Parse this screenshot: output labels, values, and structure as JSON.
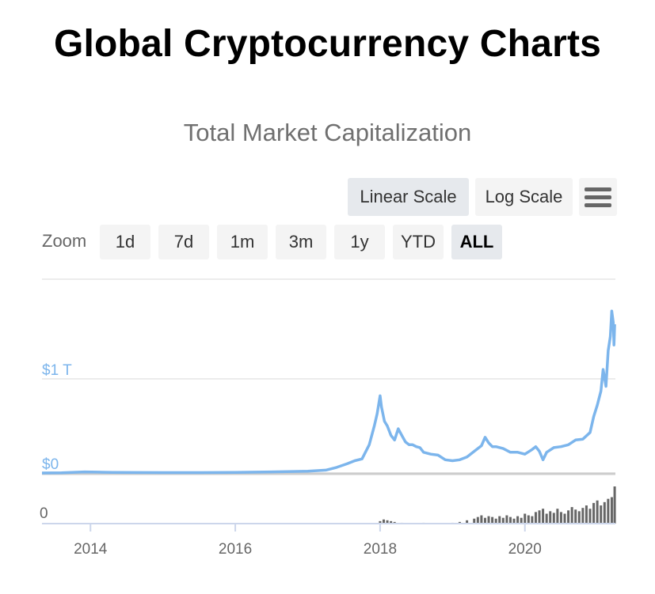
{
  "page": {
    "title": "Global Cryptocurrency Charts"
  },
  "controls": {
    "scale_buttons": [
      {
        "label": "Linear Scale",
        "active": true
      },
      {
        "label": "Log Scale",
        "active": false
      }
    ],
    "menu_icon": "hamburger-menu-icon",
    "zoom_label": "Zoom",
    "zoom_buttons": [
      {
        "label": "1d",
        "active": false
      },
      {
        "label": "7d",
        "active": false
      },
      {
        "label": "1m",
        "active": false
      },
      {
        "label": "3m",
        "active": false
      },
      {
        "label": "1y",
        "active": false
      },
      {
        "label": "YTD",
        "active": false
      },
      {
        "label": "ALL",
        "active": true
      }
    ]
  },
  "colors": {
    "line": "#7cb5ec",
    "volume": "#666666",
    "grid": "#e6e6e6",
    "axis": "#ccd6eb"
  },
  "chart_data": {
    "type": "line",
    "title": "Total Market Capitalization",
    "y_tick_labels": [
      "$0",
      "$1 T"
    ],
    "y_ticks": [
      0,
      1
    ],
    "ylim": [
      0,
      2
    ],
    "y_unit": "trillion USD",
    "x_tick_labels": [
      "2014",
      "2016",
      "2018",
      "2020"
    ],
    "x_ticks": [
      2014,
      2016,
      2018,
      2020
    ],
    "xlim": [
      2013.33,
      2021.25
    ],
    "grid": true,
    "series": [
      {
        "x": [
          2013.33,
          2013.6,
          2013.92,
          2014.1,
          2014.3,
          2014.6,
          2015.0,
          2015.5,
          2016.0,
          2016.5,
          2017.0,
          2017.25,
          2017.4,
          2017.55,
          2017.65,
          2017.75,
          2017.85,
          2017.92,
          2017.96,
          2018.0,
          2018.02,
          2018.06,
          2018.1,
          2018.15,
          2018.2,
          2018.25,
          2018.3,
          2018.35,
          2018.4,
          2018.45,
          2018.5,
          2018.55,
          2018.6,
          2018.7,
          2018.8,
          2018.9,
          2019.0,
          2019.1,
          2019.2,
          2019.3,
          2019.4,
          2019.45,
          2019.5,
          2019.55,
          2019.6,
          2019.7,
          2019.8,
          2019.9,
          2020.0,
          2020.1,
          2020.15,
          2020.2,
          2020.25,
          2020.3,
          2020.4,
          2020.5,
          2020.6,
          2020.7,
          2020.8,
          2020.9,
          2020.95,
          2021.0,
          2021.05,
          2021.08,
          2021.12,
          2021.15,
          2021.18,
          2021.2,
          2021.22,
          2021.23,
          2021.24
        ],
        "y": [
          0.0,
          0.002,
          0.012,
          0.009,
          0.006,
          0.005,
          0.004,
          0.004,
          0.007,
          0.012,
          0.019,
          0.03,
          0.06,
          0.1,
          0.13,
          0.15,
          0.3,
          0.5,
          0.63,
          0.82,
          0.7,
          0.55,
          0.5,
          0.4,
          0.35,
          0.47,
          0.4,
          0.33,
          0.3,
          0.3,
          0.28,
          0.27,
          0.22,
          0.2,
          0.19,
          0.14,
          0.13,
          0.14,
          0.17,
          0.23,
          0.29,
          0.38,
          0.32,
          0.28,
          0.28,
          0.26,
          0.22,
          0.22,
          0.2,
          0.25,
          0.28,
          0.23,
          0.14,
          0.22,
          0.27,
          0.28,
          0.3,
          0.35,
          0.36,
          0.43,
          0.6,
          0.72,
          0.87,
          1.1,
          0.92,
          1.3,
          1.45,
          1.72,
          1.6,
          1.36,
          1.58
        ]
      }
    ],
    "volume_series": {
      "y_tick_labels": [
        "0"
      ],
      "x": [
        2018.0,
        2018.05,
        2018.1,
        2018.15,
        2018.2,
        2018.3,
        2018.6,
        2019.0,
        2019.1,
        2019.2,
        2019.3,
        2019.35,
        2019.4,
        2019.45,
        2019.5,
        2019.55,
        2019.6,
        2019.65,
        2019.7,
        2019.75,
        2019.8,
        2019.85,
        2019.9,
        2019.95,
        2020.0,
        2020.05,
        2020.1,
        2020.15,
        2020.2,
        2020.25,
        2020.3,
        2020.35,
        2020.4,
        2020.45,
        2020.5,
        2020.55,
        2020.6,
        2020.65,
        2020.7,
        2020.75,
        2020.8,
        2020.85,
        2020.9,
        2020.95,
        2021.0,
        2021.05,
        2021.1,
        2021.15,
        2021.2,
        2021.24
      ],
      "y": [
        3,
        5,
        4,
        3,
        2,
        1,
        1,
        1,
        2,
        4,
        6,
        8,
        10,
        7,
        9,
        8,
        6,
        9,
        7,
        10,
        8,
        6,
        9,
        7,
        12,
        10,
        9,
        14,
        16,
        18,
        12,
        15,
        13,
        18,
        14,
        12,
        16,
        20,
        17,
        15,
        19,
        22,
        18,
        25,
        28,
        22,
        26,
        30,
        32,
        45
      ]
    }
  }
}
